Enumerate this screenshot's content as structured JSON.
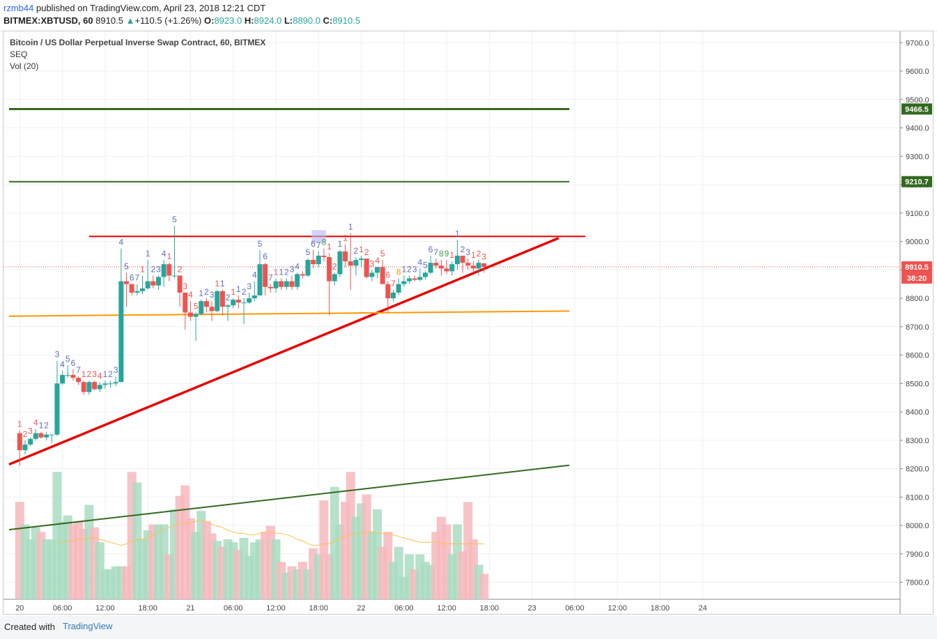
{
  "header": {
    "user": "rzmb44",
    "published": "published on TradingView.com, April 23, 2018 12:21 CDT",
    "symbol": "BITMEX:XBTUSD, 60",
    "last": "8910.5",
    "change": "+110.5 (+1.26%)",
    "o_label": "O:",
    "o_value": "8923.0",
    "h_label": "H:",
    "h_value": "8924.0",
    "l_label": "L:",
    "l_value": "8890.0",
    "c_label": "C:",
    "c_value": "8910.5"
  },
  "legend": {
    "title": "Bitcoin / US Dollar Perpetual Inverse Swap Contract, 60, BITMEX",
    "indicator1": "SEQ",
    "indicator2": "Vol (20)"
  },
  "footer": {
    "created": "Created with",
    "brand": "TradingView"
  },
  "colors": {
    "up": "#26a69a",
    "down": "#ef5350",
    "upVol": "#a9dcc2",
    "downVol": "#f7b8bd",
    "resistance": "#e60000",
    "support": "#ff9800",
    "green": "#33691e",
    "maVol": "#ffc04d"
  },
  "chart_data": {
    "type": "candlestick",
    "title": "Bitcoin / US Dollar Perpetual Inverse Swap Contract, 60, BITMEX",
    "y_ticks": [
      "9700.0",
      "9600.0",
      "9500.0",
      "9400.0",
      "9300.0",
      "9200.0",
      "9100.0",
      "9000.0",
      "8900.0",
      "8800.0",
      "8700.0",
      "8600.0",
      "8500.0",
      "8400.0",
      "8300.0",
      "8200.0",
      "8100.0",
      "8000.0",
      "7900.0",
      "7800.0"
    ],
    "y_tick_values": [
      9700,
      9600,
      9500,
      9400,
      9300,
      9200,
      9100,
      9000,
      8900,
      8800,
      8700,
      8600,
      8500,
      8400,
      8300,
      8200,
      8100,
      8000,
      7900,
      7800
    ],
    "ylim": [
      7740,
      9740
    ],
    "x_ticks": [
      "20",
      "06:00",
      "12:00",
      "18:00",
      "21",
      "06:00",
      "12:00",
      "18:00",
      "22",
      "06:00",
      "12:00",
      "18:00",
      "23",
      "06:00",
      "12:00",
      "18:00",
      "24"
    ],
    "x_tick_index": [
      2,
      10,
      18,
      26,
      34,
      42,
      50,
      58,
      66,
      74,
      82,
      90,
      98,
      106,
      114,
      122,
      130
    ],
    "n_bars": 136,
    "price_badges": [
      {
        "label": "9466.5",
        "value": 9466.5,
        "color": "#33691e"
      },
      {
        "label": "9210.7",
        "value": 9210.7,
        "color": "#33691e"
      },
      {
        "label": "8910.5",
        "value": 8910.5,
        "color": "#ef5350"
      }
    ],
    "countdown": "38:20",
    "last_price": 8910.5,
    "candles": [
      [
        8325,
        8335,
        8210,
        8265
      ],
      [
        8265,
        8300,
        8250,
        8285
      ],
      [
        8285,
        8310,
        8280,
        8305
      ],
      [
        8305,
        8340,
        8300,
        8325
      ],
      [
        8325,
        8330,
        8305,
        8310
      ],
      [
        8310,
        8330,
        8300,
        8320
      ],
      [
        8320,
        8320,
        8290,
        8320
      ],
      [
        8320,
        8580,
        8315,
        8500
      ],
      [
        8500,
        8545,
        8495,
        8530
      ],
      [
        8530,
        8565,
        8520,
        8530
      ],
      [
        8530,
        8550,
        8510,
        8520
      ],
      [
        8520,
        8525,
        8495,
        8505
      ],
      [
        8505,
        8510,
        8460,
        8470
      ],
      [
        8470,
        8510,
        8460,
        8505
      ],
      [
        8505,
        8510,
        8475,
        8480
      ],
      [
        8480,
        8505,
        8470,
        8495
      ],
      [
        8495,
        8510,
        8480,
        8500
      ],
      [
        8500,
        8510,
        8485,
        8500
      ],
      [
        8500,
        8525,
        8490,
        8505
      ],
      [
        8505,
        8975,
        8505,
        8860
      ],
      [
        8860,
        8890,
        8770,
        8850
      ],
      [
        8850,
        8850,
        8810,
        8820
      ],
      [
        8820,
        8850,
        8810,
        8825
      ],
      [
        8825,
        8880,
        8815,
        8835
      ],
      [
        8835,
        8935,
        8830,
        8860
      ],
      [
        8860,
        8880,
        8835,
        8845
      ],
      [
        8845,
        8880,
        8830,
        8875
      ],
      [
        8875,
        8935,
        8840,
        8920
      ],
      [
        8920,
        8925,
        8860,
        8880
      ],
      [
        8880,
        9055,
        8870,
        8880
      ],
      [
        8880,
        8880,
        8770,
        8820
      ],
      [
        8820,
        8820,
        8690,
        8750
      ],
      [
        8750,
        8790,
        8720,
        8735
      ],
      [
        8735,
        8750,
        8650,
        8745
      ],
      [
        8745,
        8795,
        8740,
        8790
      ],
      [
        8790,
        8800,
        8750,
        8770
      ],
      [
        8770,
        8790,
        8720,
        8755
      ],
      [
        8755,
        8830,
        8750,
        8825
      ],
      [
        8825,
        8830,
        8740,
        8770
      ],
      [
        8770,
        8780,
        8720,
        8775
      ],
      [
        8775,
        8800,
        8765,
        8795
      ],
      [
        8795,
        8810,
        8765,
        8785
      ],
      [
        8785,
        8800,
        8710,
        8785
      ],
      [
        8785,
        8820,
        8780,
        8800
      ],
      [
        8800,
        8860,
        8790,
        8810
      ],
      [
        8810,
        8970,
        8810,
        8920
      ],
      [
        8920,
        8925,
        8810,
        8840
      ],
      [
        8840,
        8850,
        8820,
        8835
      ],
      [
        8835,
        8870,
        8820,
        8860
      ],
      [
        8860,
        8870,
        8830,
        8840
      ],
      [
        8840,
        8870,
        8830,
        8860
      ],
      [
        8860,
        8880,
        8830,
        8840
      ],
      [
        8840,
        8890,
        8830,
        8885
      ],
      [
        8885,
        8895,
        8870,
        8880
      ],
      [
        8880,
        8940,
        8875,
        8935
      ],
      [
        8935,
        8970,
        8905,
        8920
      ],
      [
        8920,
        8965,
        8910,
        8950
      ],
      [
        8950,
        8975,
        8930,
        8945
      ],
      [
        8945,
        8960,
        8740,
        8860
      ],
      [
        8860,
        8890,
        8845,
        8885
      ],
      [
        8885,
        8970,
        8875,
        8965
      ],
      [
        8965,
        8990,
        8910,
        8930
      ],
      [
        8930,
        9030,
        8830,
        8915
      ],
      [
        8915,
        8945,
        8880,
        8935
      ],
      [
        8935,
        8950,
        8910,
        8940
      ],
      [
        8940,
        8940,
        8870,
        8875
      ],
      [
        8875,
        8900,
        8860,
        8890
      ],
      [
        8890,
        8910,
        8870,
        8910
      ],
      [
        8910,
        8935,
        8850,
        8850
      ],
      [
        8850,
        8860,
        8750,
        8800
      ],
      [
        8800,
        8830,
        8790,
        8820
      ],
      [
        8820,
        8870,
        8810,
        8850
      ],
      [
        8850,
        8880,
        8840,
        8860
      ],
      [
        8860,
        8880,
        8850,
        8870
      ],
      [
        8870,
        8880,
        8860,
        8865
      ],
      [
        8865,
        8905,
        8860,
        8875
      ],
      [
        8875,
        8895,
        8865,
        8890
      ],
      [
        8890,
        8950,
        8885,
        8925
      ],
      [
        8925,
        8940,
        8905,
        8915
      ],
      [
        8915,
        8935,
        8880,
        8905
      ],
      [
        8905,
        8935,
        8885,
        8895
      ],
      [
        8895,
        8930,
        8880,
        8920
      ],
      [
        8920,
        9005,
        8900,
        8950
      ],
      [
        8950,
        8950,
        8890,
        8925
      ],
      [
        8925,
        8940,
        8900,
        8915
      ],
      [
        8915,
        8930,
        8890,
        8905
      ],
      [
        8905,
        8935,
        8880,
        8925
      ],
      [
        8923,
        8924,
        8890,
        8910.5
      ]
    ],
    "candle_x_index": [
      2,
      3,
      4,
      5,
      6,
      7,
      8,
      9,
      10,
      11,
      12,
      13,
      14,
      15,
      16,
      17,
      18,
      19,
      20,
      21,
      22,
      23,
      24,
      25,
      26,
      27,
      28,
      29,
      30,
      31,
      32,
      33,
      34,
      35,
      36,
      37,
      38,
      39,
      40,
      41,
      42,
      43,
      44,
      45,
      46,
      47,
      48,
      49,
      50,
      51,
      52,
      53,
      54,
      55,
      56,
      57,
      58,
      59,
      60,
      61,
      62,
      63,
      64,
      65,
      66,
      67,
      68,
      69,
      70,
      71,
      72,
      73,
      74,
      75,
      76,
      77,
      78,
      79,
      80,
      81,
      82,
      83,
      84,
      85,
      86,
      87,
      88,
      89
    ],
    "volume_ylim": [
      0,
      100
    ],
    "volumes": [
      65,
      50,
      40,
      48,
      45,
      40,
      40,
      85,
      52,
      56,
      50,
      52,
      47,
      63,
      48,
      38,
      20,
      20,
      22,
      22,
      22,
      85,
      78,
      40,
      46,
      50,
      50,
      50,
      30,
      60,
      69,
      76,
      54,
      45,
      59,
      52,
      44,
      39,
      35,
      40,
      38,
      33,
      41,
      29,
      38,
      40,
      45,
      49,
      40,
      25,
      18,
      22,
      20,
      25,
      20,
      34,
      30,
      66,
      30,
      75,
      50,
      65,
      85,
      55,
      64,
      70,
      45,
      60,
      35,
      45,
      25,
      35,
      15,
      30,
      20,
      30,
      25,
      23,
      45,
      55,
      50,
      30,
      50,
      32,
      65,
      40,
      23,
      17
    ],
    "volume_ma": [
      null,
      null,
      null,
      null,
      null,
      null,
      null,
      38,
      38,
      39,
      39,
      40,
      40,
      41,
      41,
      40,
      39,
      38,
      37,
      36,
      37,
      39,
      40,
      40,
      41,
      43,
      45,
      47,
      48,
      49,
      50,
      51,
      51,
      52,
      53,
      52,
      50,
      49,
      48,
      46,
      45,
      44,
      44,
      43,
      43,
      44,
      45,
      45,
      44,
      44,
      43,
      42,
      40,
      39,
      37,
      36,
      36,
      37,
      37,
      39,
      40,
      42,
      43,
      44,
      44,
      45,
      45,
      44,
      44,
      44,
      43,
      42,
      41,
      40,
      39,
      38,
      38,
      38,
      38,
      37,
      37,
      37,
      37,
      37,
      37,
      37,
      37,
      37
    ],
    "seq_labels": [
      {
        "i": 0,
        "t": "1",
        "c": "red"
      },
      {
        "i": 1,
        "t": "2",
        "c": "red"
      },
      {
        "i": 2,
        "t": "3",
        "c": "red"
      },
      {
        "i": 3,
        "t": "4",
        "c": "red"
      },
      {
        "i": 4,
        "t": "1",
        "c": "blue"
      },
      {
        "i": 5,
        "t": "2",
        "c": "blue"
      },
      {
        "i": 7,
        "t": "3",
        "c": "blue"
      },
      {
        "i": 8,
        "t": "4",
        "c": "blue"
      },
      {
        "i": 9,
        "t": "5",
        "c": "blue"
      },
      {
        "i": 10,
        "t": "6",
        "c": "blue"
      },
      {
        "i": 11,
        "t": "7",
        "c": "blue"
      },
      {
        "i": 12,
        "t": "1",
        "c": "red"
      },
      {
        "i": 13,
        "t": "2",
        "c": "red"
      },
      {
        "i": 14,
        "t": "3",
        "c": "red"
      },
      {
        "i": 15,
        "t": "4",
        "c": "red"
      },
      {
        "i": 16,
        "t": "1",
        "c": "blue"
      },
      {
        "i": 17,
        "t": "2",
        "c": "blue"
      },
      {
        "i": 18,
        "t": "3",
        "c": "blue"
      },
      {
        "i": 19,
        "t": "4",
        "c": "blue"
      },
      {
        "i": 20,
        "t": "5",
        "c": "blue"
      },
      {
        "i": 21,
        "t": "6",
        "c": "blue"
      },
      {
        "i": 22,
        "t": "7",
        "c": "blue"
      },
      {
        "i": 23,
        "t": "1",
        "c": "red"
      },
      {
        "i": 24,
        "t": "1",
        "c": "blue"
      },
      {
        "i": 25,
        "t": "2",
        "c": "blue"
      },
      {
        "i": 26,
        "t": "3",
        "c": "blue"
      },
      {
        "i": 27,
        "t": "4",
        "c": "blue"
      },
      {
        "i": 29,
        "t": "5",
        "c": "blue"
      },
      {
        "i": 28,
        "t": "1",
        "c": "red"
      },
      {
        "i": 30,
        "t": "2",
        "c": "red"
      },
      {
        "i": 31,
        "t": "3",
        "c": "red"
      },
      {
        "i": 32,
        "t": "4",
        "c": "red"
      },
      {
        "i": 33,
        "t": "5",
        "c": "red"
      },
      {
        "i": 34,
        "t": "1",
        "c": "blue"
      },
      {
        "i": 35,
        "t": "2",
        "c": "blue"
      },
      {
        "i": 36,
        "t": "3",
        "c": "blue"
      },
      {
        "i": 37,
        "t": "1",
        "c": "red"
      },
      {
        "i": 38,
        "t": "1",
        "c": "blue"
      },
      {
        "i": 39,
        "t": "2",
        "c": "blue"
      },
      {
        "i": 40,
        "t": "1",
        "c": "red"
      },
      {
        "i": 41,
        "t": "1",
        "c": "blue"
      },
      {
        "i": 42,
        "t": "2",
        "c": "blue"
      },
      {
        "i": 43,
        "t": "3",
        "c": "blue"
      },
      {
        "i": 44,
        "t": "4",
        "c": "blue"
      },
      {
        "i": 45,
        "t": "5",
        "c": "blue"
      },
      {
        "i": 46,
        "t": "6",
        "c": "blue"
      },
      {
        "i": 47,
        "t": "7",
        "c": "blue"
      },
      {
        "i": 48,
        "t": "1",
        "c": "red"
      },
      {
        "i": 49,
        "t": "1",
        "c": "blue"
      },
      {
        "i": 50,
        "t": "2",
        "c": "blue"
      },
      {
        "i": 51,
        "t": "3",
        "c": "blue"
      },
      {
        "i": 52,
        "t": "4",
        "c": "blue"
      },
      {
        "i": 54,
        "t": "5",
        "c": "blue"
      },
      {
        "i": 55,
        "t": "6",
        "c": "blue"
      },
      {
        "i": 56,
        "t": "7",
        "c": "blue"
      },
      {
        "i": 57,
        "t": "8",
        "c": "green"
      },
      {
        "i": 58,
        "t": "1",
        "c": "red"
      },
      {
        "i": 59,
        "t": "2",
        "c": "red"
      },
      {
        "i": 60,
        "t": "1",
        "c": "blue"
      },
      {
        "i": 61,
        "t": "1",
        "c": "red"
      },
      {
        "i": 62,
        "t": "1",
        "c": "blue"
      },
      {
        "i": 63,
        "t": "2",
        "c": "blue"
      },
      {
        "i": 64,
        "t": "1",
        "c": "red"
      },
      {
        "i": 65,
        "t": "2",
        "c": "red"
      },
      {
        "i": 66,
        "t": "3",
        "c": "red"
      },
      {
        "i": 67,
        "t": "4",
        "c": "red"
      },
      {
        "i": 68,
        "t": "5",
        "c": "red"
      },
      {
        "i": 69,
        "t": "6",
        "c": "red"
      },
      {
        "i": 70,
        "t": "7",
        "c": "red"
      },
      {
        "i": 71,
        "t": "8",
        "c": "orange"
      },
      {
        "i": 72,
        "t": "1",
        "c": "blue"
      },
      {
        "i": 73,
        "t": "2",
        "c": "blue"
      },
      {
        "i": 74,
        "t": "3",
        "c": "blue"
      },
      {
        "i": 75,
        "t": "4",
        "c": "blue"
      },
      {
        "i": 76,
        "t": "5",
        "c": "blue"
      },
      {
        "i": 77,
        "t": "6",
        "c": "blue"
      },
      {
        "i": 78,
        "t": "7",
        "c": "blue"
      },
      {
        "i": 79,
        "t": "8",
        "c": "green"
      },
      {
        "i": 80,
        "t": "9",
        "c": "green"
      },
      {
        "i": 81,
        "t": "1",
        "c": "red"
      },
      {
        "i": 82,
        "t": "1",
        "c": "blue"
      },
      {
        "i": 83,
        "t": "2",
        "c": "blue"
      },
      {
        "i": 84,
        "t": "3",
        "c": "blue"
      },
      {
        "i": 85,
        "t": "1",
        "c": "red"
      },
      {
        "i": 86,
        "t": "2",
        "c": "red"
      },
      {
        "i": 87,
        "t": "3",
        "c": "red"
      }
    ],
    "lines": [
      {
        "name": "resistance",
        "p1": [
          15,
          9018
        ],
        "p2": [
          108,
          9018
        ],
        "color": "#e60000",
        "width": 2
      },
      {
        "name": "rising-support",
        "p1": [
          0,
          8215
        ],
        "p2": [
          103,
          9012
        ],
        "color": "#e60000",
        "width": 3.5
      },
      {
        "name": "orange-support",
        "p1": [
          0,
          8737
        ],
        "p2": [
          105,
          8755
        ],
        "color": "#ff9800",
        "width": 2
      },
      {
        "name": "green-trend",
        "p1": [
          0,
          7985
        ],
        "p2": [
          105,
          8212
        ],
        "color": "#33691e",
        "width": 2
      },
      {
        "name": "green-level-1",
        "p1": [
          0,
          9466.5
        ],
        "p2": [
          105,
          9466.5
        ],
        "color": "#33691e",
        "width": 3
      },
      {
        "name": "green-level-2",
        "p1": [
          0,
          9210.7
        ],
        "p2": [
          105,
          9210.7
        ],
        "color": "#33691e",
        "width": 2
      }
    ],
    "highlight_box": {
      "x0": 56.7,
      "x1": 59.4,
      "y0": 8995,
      "y1": 9040
    }
  }
}
